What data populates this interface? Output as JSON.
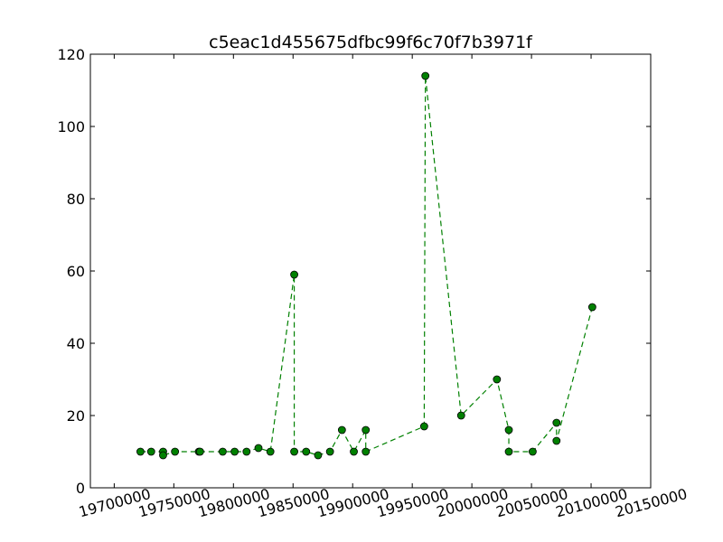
{
  "chart_data": {
    "type": "line",
    "title": "c5eac1d455675dfbc99f6c70f7b3971f",
    "xlabel": "",
    "ylabel": "",
    "xlim": [
      19680000,
      20150000
    ],
    "ylim": [
      0,
      120
    ],
    "x_ticks": [
      19700000,
      19750000,
      19800000,
      19850000,
      19900000,
      19950000,
      20000000,
      20050000,
      20100000,
      20150000
    ],
    "y_ticks": [
      0,
      20,
      40,
      60,
      80,
      100,
      120
    ],
    "x_tick_labels": [
      "19700000",
      "19750000",
      "19800000",
      "19850000",
      "19900000",
      "19950000",
      "20000000",
      "20050000",
      "20100000",
      "20150000"
    ],
    "y_tick_labels": [
      "0",
      "20",
      "40",
      "60",
      "80",
      "100",
      "120"
    ],
    "grid": false,
    "legend": "none",
    "series": [
      {
        "color": "#008000",
        "line_style": "dashed",
        "marker": "circle",
        "points": [
          {
            "x": 19722000,
            "y": 10
          },
          {
            "x": 19731000,
            "y": 10
          },
          {
            "x": 19741000,
            "y": 10
          },
          {
            "x": 19741000,
            "y": 9
          },
          {
            "x": 19751000,
            "y": 10
          },
          {
            "x": 19771000,
            "y": 10
          },
          {
            "x": 19772000,
            "y": 10
          },
          {
            "x": 19791000,
            "y": 10
          },
          {
            "x": 19801000,
            "y": 10
          },
          {
            "x": 19811000,
            "y": 10
          },
          {
            "x": 19821000,
            "y": 11
          },
          {
            "x": 19831000,
            "y": 10
          },
          {
            "x": 19851000,
            "y": 59
          },
          {
            "x": 19851000,
            "y": 10
          },
          {
            "x": 19861000,
            "y": 10
          },
          {
            "x": 19871000,
            "y": 9
          },
          {
            "x": 19881000,
            "y": 10
          },
          {
            "x": 19891000,
            "y": 16
          },
          {
            "x": 19901000,
            "y": 10
          },
          {
            "x": 19911000,
            "y": 16
          },
          {
            "x": 19911000,
            "y": 10
          },
          {
            "x": 19960000,
            "y": 17
          },
          {
            "x": 19961000,
            "y": 114
          },
          {
            "x": 19991000,
            "y": 20
          },
          {
            "x": 20021000,
            "y": 30
          },
          {
            "x": 20031000,
            "y": 16
          },
          {
            "x": 20031000,
            "y": 10
          },
          {
            "x": 20051000,
            "y": 10
          },
          {
            "x": 20071000,
            "y": 18
          },
          {
            "x": 20071000,
            "y": 13
          },
          {
            "x": 20101000,
            "y": 50
          }
        ]
      }
    ]
  }
}
